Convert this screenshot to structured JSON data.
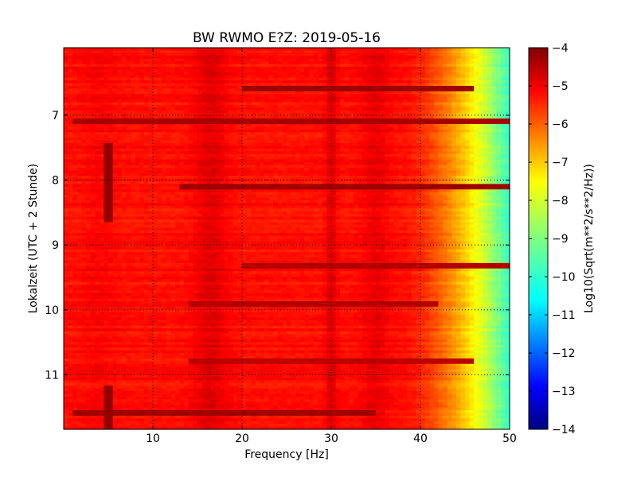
{
  "chart_data": {
    "type": "heatmap",
    "title": "BW RWMO E?Z: 2019-05-16",
    "xlabel": "Frequency [Hz]",
    "ylabel": "Lokalzeit (UTC + 2 Stunde)",
    "xlim": [
      0,
      50
    ],
    "ylim": [
      5.96,
      11.84
    ],
    "y_inverted": true,
    "x_ticks": [
      10,
      20,
      30,
      40,
      50
    ],
    "y_ticks": [
      7,
      8,
      9,
      10,
      11
    ],
    "grid": true,
    "grid_style": "dotted",
    "colormap": "jet",
    "colorbar": {
      "label": "Log10(Sqrt(m**2/s**2/Hz))",
      "range": [
        -14,
        -4
      ],
      "ticks": [
        -4,
        -5,
        -6,
        -7,
        -8,
        -9,
        -10,
        -11,
        -12,
        -13,
        -14
      ]
    },
    "value_range": [
      -14,
      -4
    ],
    "description_values": {
      "low_freq_0_38Hz": -5.4,
      "rolloff_start_Hz": 38,
      "high_freq_50Hz": -9.8,
      "band_16Hz": -4.9,
      "band_30Hz": -4.8,
      "band_35Hz": -5.0
    },
    "dark_bands": [
      {
        "time": 6.6,
        "f_start": 20,
        "f_end": 46,
        "value": -4.3
      },
      {
        "time": 7.1,
        "f_start": 1,
        "f_end": 50,
        "value": -4.4
      },
      {
        "time": 8.1,
        "f_start": 13,
        "f_end": 50,
        "value": -4.3
      },
      {
        "time": 9.33,
        "f_start": 20,
        "f_end": 50,
        "value": -4.5
      },
      {
        "time": 9.9,
        "f_start": 14,
        "f_end": 42,
        "value": -4.5
      },
      {
        "time": 10.8,
        "f_start": 14,
        "f_end": 46,
        "value": -4.6
      },
      {
        "time": 11.6,
        "f_start": 1,
        "f_end": 35,
        "value": -4.3
      }
    ],
    "vertical_line": {
      "freq": 5,
      "segments": [
        [
          7.45,
          8.65
        ],
        [
          11.15,
          11.84
        ]
      ],
      "value": -4.2
    }
  }
}
